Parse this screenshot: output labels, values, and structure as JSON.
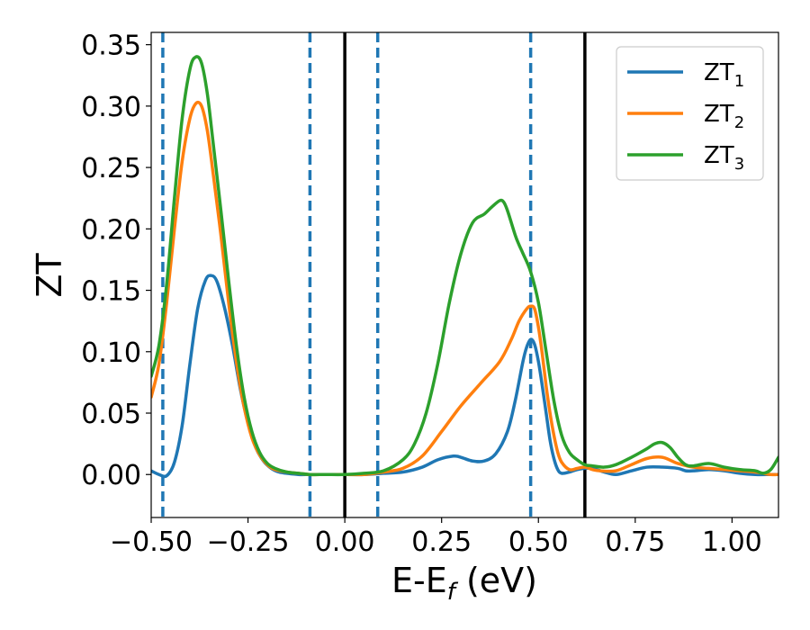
{
  "chart_data": {
    "type": "line",
    "xlabel": "E-E",
    "xlabel_sub": "f",
    "xlabel_unit": "(eV)",
    "ylabel": "ZT",
    "xlim": [
      -0.5,
      1.12
    ],
    "ylim": [
      -0.035,
      0.36
    ],
    "xticks": [
      -0.5,
      -0.25,
      0.0,
      0.25,
      0.5,
      0.75,
      1.0
    ],
    "xtick_labels": [
      "−0.50",
      "−0.25",
      "0.00",
      "0.25",
      "0.50",
      "0.75",
      "1.00"
    ],
    "yticks": [
      0.0,
      0.05,
      0.1,
      0.15,
      0.2,
      0.25,
      0.3,
      0.35
    ],
    "ytick_labels": [
      "0.00",
      "0.05",
      "0.10",
      "0.15",
      "0.20",
      "0.25",
      "0.30",
      "0.35"
    ],
    "legend_position": "top-right",
    "grid": false,
    "vlines_dashed": [
      -0.47,
      -0.09,
      0.085,
      0.48
    ],
    "vlines_solid": [
      0.0,
      0.62
    ],
    "vline_dashed_color": "#1f77b4",
    "vline_solid_color": "#000000",
    "series": [
      {
        "name": "ZT",
        "subscript": "1",
        "color": "#1f77b4",
        "x": [
          -0.5,
          -0.48,
          -0.46,
          -0.44,
          -0.42,
          -0.4,
          -0.38,
          -0.36,
          -0.345,
          -0.33,
          -0.31,
          -0.29,
          -0.27,
          -0.25,
          -0.23,
          -0.21,
          -0.19,
          -0.17,
          -0.15,
          -0.12,
          -0.09,
          -0.05,
          0.0,
          0.05,
          0.1,
          0.15,
          0.2,
          0.24,
          0.28,
          0.3,
          0.33,
          0.36,
          0.39,
          0.42,
          0.44,
          0.46,
          0.47,
          0.48,
          0.49,
          0.5,
          0.51,
          0.52,
          0.53,
          0.54,
          0.55,
          0.56,
          0.58,
          0.6,
          0.62,
          0.64,
          0.67,
          0.7,
          0.74,
          0.78,
          0.82,
          0.86,
          0.88,
          0.9,
          0.94,
          0.98,
          1.02,
          1.06,
          1.1,
          1.12
        ],
        "y": [
          0.003,
          0.0,
          -0.001,
          0.01,
          0.04,
          0.09,
          0.135,
          0.158,
          0.162,
          0.157,
          0.135,
          0.105,
          0.07,
          0.042,
          0.022,
          0.011,
          0.005,
          0.002,
          0.001,
          0.0,
          0.0,
          0.0,
          0.0,
          0.0,
          0.001,
          0.002,
          0.006,
          0.012,
          0.015,
          0.014,
          0.011,
          0.011,
          0.017,
          0.035,
          0.06,
          0.092,
          0.104,
          0.11,
          0.106,
          0.092,
          0.072,
          0.05,
          0.028,
          0.013,
          0.004,
          0.001,
          0.002,
          0.004,
          0.005,
          0.005,
          0.002,
          0.0,
          0.003,
          0.006,
          0.006,
          0.005,
          0.003,
          0.003,
          0.004,
          0.003,
          0.001,
          0.0,
          0.0,
          0.0
        ]
      },
      {
        "name": "ZT",
        "subscript": "2",
        "color": "#ff7f0e",
        "x": [
          -0.5,
          -0.48,
          -0.46,
          -0.44,
          -0.42,
          -0.4,
          -0.385,
          -0.37,
          -0.355,
          -0.34,
          -0.32,
          -0.3,
          -0.28,
          -0.26,
          -0.24,
          -0.22,
          -0.2,
          -0.18,
          -0.15,
          -0.12,
          -0.09,
          -0.05,
          0.0,
          0.05,
          0.1,
          0.15,
          0.2,
          0.25,
          0.3,
          0.35,
          0.4,
          0.43,
          0.45,
          0.47,
          0.48,
          0.49,
          0.5,
          0.51,
          0.52,
          0.53,
          0.54,
          0.55,
          0.56,
          0.58,
          0.6,
          0.62,
          0.64,
          0.66,
          0.7,
          0.74,
          0.78,
          0.82,
          0.86,
          0.9,
          0.94,
          0.98,
          1.02,
          1.06,
          1.1,
          1.12
        ],
        "y": [
          0.063,
          0.09,
          0.14,
          0.2,
          0.255,
          0.29,
          0.302,
          0.3,
          0.28,
          0.245,
          0.195,
          0.14,
          0.092,
          0.055,
          0.03,
          0.016,
          0.008,
          0.004,
          0.002,
          0.001,
          0.0,
          0.0,
          0.0,
          0.0,
          0.002,
          0.005,
          0.015,
          0.035,
          0.056,
          0.074,
          0.092,
          0.11,
          0.125,
          0.135,
          0.137,
          0.135,
          0.12,
          0.098,
          0.072,
          0.05,
          0.032,
          0.018,
          0.01,
          0.004,
          0.005,
          0.006,
          0.004,
          0.003,
          0.003,
          0.008,
          0.013,
          0.014,
          0.009,
          0.006,
          0.005,
          0.004,
          0.003,
          0.002,
          0.0,
          0.0
        ]
      },
      {
        "name": "ZT",
        "subscript": "3",
        "color": "#2ca02c",
        "x": [
          -0.5,
          -0.48,
          -0.46,
          -0.44,
          -0.42,
          -0.4,
          -0.385,
          -0.37,
          -0.355,
          -0.34,
          -0.32,
          -0.3,
          -0.28,
          -0.26,
          -0.24,
          -0.22,
          -0.2,
          -0.18,
          -0.15,
          -0.12,
          -0.09,
          -0.05,
          0.0,
          0.05,
          0.1,
          0.15,
          0.18,
          0.21,
          0.24,
          0.27,
          0.3,
          0.33,
          0.36,
          0.38,
          0.4,
          0.41,
          0.42,
          0.44,
          0.45,
          0.46,
          0.48,
          0.5,
          0.52,
          0.54,
          0.56,
          0.58,
          0.6,
          0.62,
          0.64,
          0.67,
          0.7,
          0.74,
          0.78,
          0.8,
          0.82,
          0.84,
          0.86,
          0.88,
          0.9,
          0.94,
          0.98,
          1.02,
          1.06,
          1.08,
          1.1,
          1.12
        ],
        "y": [
          0.08,
          0.105,
          0.155,
          0.225,
          0.29,
          0.33,
          0.34,
          0.335,
          0.31,
          0.27,
          0.215,
          0.158,
          0.105,
          0.063,
          0.035,
          0.018,
          0.009,
          0.005,
          0.002,
          0.001,
          0.0,
          0.0,
          0.0,
          0.001,
          0.003,
          0.012,
          0.025,
          0.05,
          0.09,
          0.14,
          0.18,
          0.205,
          0.212,
          0.218,
          0.223,
          0.222,
          0.215,
          0.195,
          0.187,
          0.18,
          0.165,
          0.14,
          0.1,
          0.06,
          0.032,
          0.018,
          0.012,
          0.008,
          0.007,
          0.006,
          0.008,
          0.014,
          0.021,
          0.025,
          0.026,
          0.022,
          0.014,
          0.008,
          0.007,
          0.009,
          0.006,
          0.004,
          0.003,
          0.001,
          0.004,
          0.014
        ]
      }
    ]
  }
}
